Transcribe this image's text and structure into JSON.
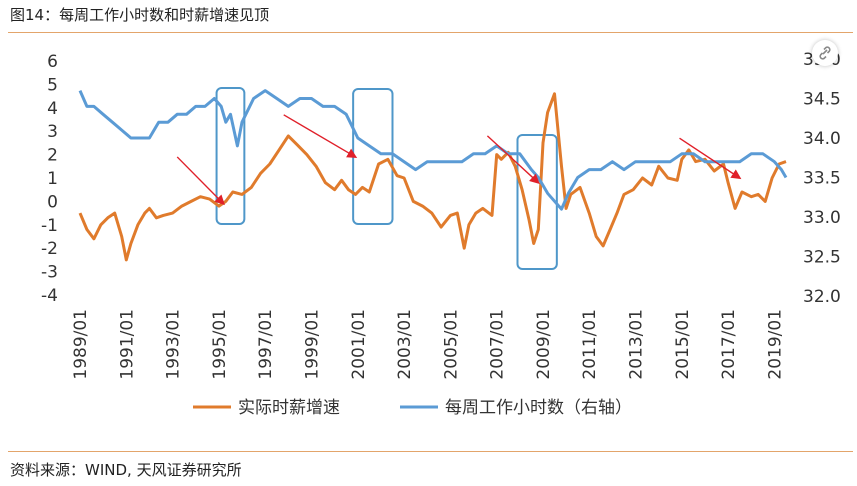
{
  "figure_title": "图14：每周工作小时数和时薪增速见顶",
  "source": "资料来源：WIND, 天风证券研究所",
  "chart_data": {
    "type": "line",
    "title": "每周工作小时数和时薪增速见顶",
    "x_ticks": [
      "1989/01",
      "1991/01",
      "1993/01",
      "1995/01",
      "1997/01",
      "1999/01",
      "2001/01",
      "2003/01",
      "2005/01",
      "2007/01",
      "2009/01",
      "2011/01",
      "2013/01",
      "2015/01",
      "2017/01",
      "2019/01"
    ],
    "x_range": [
      1989.0,
      2019.5
    ],
    "left_axis": {
      "ticks": [
        "6",
        "5",
        "4",
        "3",
        "2",
        "1",
        "0",
        "-1",
        "-2",
        "-3",
        "-4"
      ],
      "ylim": [
        -4,
        6
      ]
    },
    "right_axis": {
      "ticks": [
        "35.0",
        "34.5",
        "34.0",
        "33.5",
        "33.0",
        "32.5",
        "32.0"
      ],
      "ylim": [
        32.0,
        35.0
      ]
    },
    "series": [
      {
        "name": "实际时薪增速",
        "axis": "left",
        "color": "#e07b2c",
        "x": [
          1989.0,
          1989.3,
          1989.6,
          1989.9,
          1990.2,
          1990.5,
          1990.8,
          1991.0,
          1991.2,
          1991.5,
          1991.8,
          1992.0,
          1992.3,
          1992.6,
          1993.0,
          1993.4,
          1993.8,
          1994.2,
          1994.6,
          1995.0,
          1995.3,
          1995.6,
          1996.0,
          1996.4,
          1996.8,
          1997.2,
          1997.6,
          1998.0,
          1998.4,
          1998.8,
          1999.2,
          1999.6,
          2000.0,
          2000.3,
          2000.6,
          2000.9,
          2001.2,
          2001.5,
          2001.9,
          2002.3,
          2002.7,
          2003.0,
          2003.4,
          2003.8,
          2004.2,
          2004.6,
          2005.0,
          2005.3,
          2005.6,
          2005.8,
          2006.1,
          2006.4,
          2006.8,
          2007.0,
          2007.2,
          2007.5,
          2007.8,
          2008.1,
          2008.4,
          2008.6,
          2008.8,
          2009.0,
          2009.2,
          2009.5,
          2009.8,
          2010.0,
          2010.2,
          2010.6,
          2011.0,
          2011.3,
          2011.6,
          2011.9,
          2012.2,
          2012.5,
          2012.9,
          2013.3,
          2013.7,
          2014.0,
          2014.4,
          2014.8,
          2015.0,
          2015.3,
          2015.6,
          2016.0,
          2016.4,
          2016.8,
          2017.0,
          2017.3,
          2017.6,
          2018.0,
          2018.3,
          2018.6,
          2018.9,
          2019.2,
          2019.5
        ],
        "values": [
          -0.5,
          -1.2,
          -1.6,
          -1.0,
          -0.7,
          -0.5,
          -1.5,
          -2.5,
          -1.8,
          -1.0,
          -0.5,
          -0.3,
          -0.7,
          -0.6,
          -0.5,
          -0.2,
          0.0,
          0.2,
          0.1,
          -0.2,
          0.0,
          0.4,
          0.3,
          0.6,
          1.2,
          1.6,
          2.2,
          2.8,
          2.4,
          2.0,
          1.5,
          0.8,
          0.5,
          0.9,
          0.5,
          0.3,
          0.6,
          0.4,
          1.6,
          1.8,
          1.1,
          1.0,
          0.0,
          -0.2,
          -0.5,
          -1.1,
          -0.6,
          -0.5,
          -2.0,
          -1.0,
          -0.5,
          -0.3,
          -0.6,
          2.0,
          1.8,
          2.1,
          1.5,
          0.5,
          -0.8,
          -1.8,
          -1.2,
          2.5,
          3.8,
          4.6,
          1.5,
          -0.3,
          0.3,
          0.6,
          -0.5,
          -1.5,
          -1.9,
          -1.2,
          -0.5,
          0.3,
          0.5,
          1.0,
          0.7,
          1.5,
          1.0,
          0.9,
          1.8,
          2.2,
          1.7,
          1.8,
          1.3,
          1.6,
          0.8,
          -0.3,
          0.4,
          0.2,
          0.3,
          0.0,
          1.0,
          1.6,
          1.7
        ]
      },
      {
        "name": "每周工作小时数（右轴）",
        "axis": "right",
        "color": "#5b9bd5",
        "x": [
          1989.0,
          1989.3,
          1989.6,
          1990.0,
          1990.4,
          1990.8,
          1991.2,
          1991.6,
          1992.0,
          1992.4,
          1992.8,
          1993.2,
          1993.6,
          1994.0,
          1994.4,
          1994.8,
          1995.1,
          1995.3,
          1995.5,
          1995.8,
          1996.0,
          1996.5,
          1997.0,
          1997.5,
          1998.0,
          1998.5,
          1999.0,
          1999.5,
          2000.0,
          2000.5,
          2001.0,
          2001.5,
          2002.0,
          2002.5,
          2003.0,
          2003.5,
          2004.0,
          2004.5,
          2005.0,
          2005.5,
          2006.0,
          2006.5,
          2007.0,
          2007.5,
          2008.0,
          2008.5,
          2008.8,
          2009.0,
          2009.2,
          2009.5,
          2009.8,
          2010.1,
          2010.5,
          2011.0,
          2011.5,
          2012.0,
          2012.5,
          2013.0,
          2013.5,
          2014.0,
          2014.5,
          2015.0,
          2015.5,
          2016.0,
          2016.5,
          2017.0,
          2017.5,
          2018.0,
          2018.5,
          2019.0,
          2019.3,
          2019.5
        ],
        "values": [
          34.6,
          34.4,
          34.4,
          34.3,
          34.2,
          34.1,
          34.0,
          34.0,
          34.0,
          34.2,
          34.2,
          34.3,
          34.3,
          34.4,
          34.4,
          34.5,
          34.4,
          34.2,
          34.3,
          33.9,
          34.2,
          34.5,
          34.6,
          34.5,
          34.4,
          34.5,
          34.5,
          34.4,
          34.4,
          34.3,
          34.0,
          33.9,
          33.8,
          33.8,
          33.7,
          33.6,
          33.7,
          33.7,
          33.7,
          33.7,
          33.8,
          33.8,
          33.9,
          33.8,
          33.8,
          33.6,
          33.5,
          33.4,
          33.3,
          33.2,
          33.1,
          33.3,
          33.5,
          33.6,
          33.6,
          33.7,
          33.6,
          33.7,
          33.7,
          33.7,
          33.7,
          33.8,
          33.8,
          33.7,
          33.7,
          33.7,
          33.7,
          33.8,
          33.8,
          33.7,
          33.6,
          33.5
        ]
      }
    ],
    "annotations": {
      "highlight_periods": [
        [
          1994.9,
          1996.1
        ],
        [
          2000.8,
          2002.5
        ],
        [
          2007.9,
          2009.6
        ]
      ],
      "arrows": [
        [
          1993.2,
          1.9,
          1995.2,
          -0.1
        ],
        [
          1997.8,
          3.7,
          2000.9,
          1.9
        ],
        [
          2006.6,
          2.8,
          2008.8,
          0.8
        ],
        [
          2014.9,
          2.7,
          2017.5,
          1.0
        ]
      ]
    },
    "legend_position": "bottom",
    "grid": false
  }
}
